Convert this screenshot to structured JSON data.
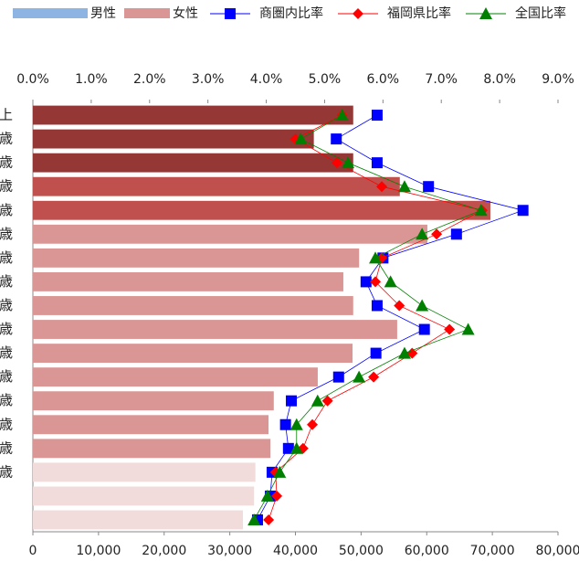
{
  "chart_data": {
    "type": "bar",
    "orientation": "horizontal",
    "legend": [
      {
        "name": "男性",
        "color": "#8db4e2"
      },
      {
        "name": "女性",
        "color": "#da9694"
      }
    ],
    "categories": [
      "上",
      "歳",
      "歳",
      "歳",
      "歳",
      "歳",
      "歳",
      "歳",
      "歳",
      "歳",
      "歳",
      "歳",
      "歳",
      "歳",
      "歳",
      "歳",
      null,
      null
    ],
    "values": [
      48800,
      42800,
      48800,
      55900,
      69700,
      60100,
      49700,
      47300,
      48800,
      55500,
      48700,
      43400,
      36700,
      35900,
      36200,
      33900,
      33700,
      32000
    ],
    "bar_colors": [
      "#953735",
      "#953735",
      "#953735",
      "#c0504d",
      "#c0504d",
      "#da9694",
      "#da9694",
      "#da9694",
      "#da9694",
      "#da9694",
      "#da9694",
      "#da9694",
      "#da9694",
      "#da9694",
      "#da9694",
      "#f2dcdb",
      "#f2dcdb",
      "#f2dcdb"
    ],
    "xlim": [
      0,
      80000
    ],
    "xticks": [
      0,
      {
        "value": 10000,
        "label": "10,000"
      },
      {
        "value": 20000,
        "label": "20,000"
      },
      {
        "value": 30000,
        "label": "30,000"
      },
      {
        "value": 40000,
        "label": "40,000"
      },
      {
        "value": 50000,
        "label": "50,000"
      },
      {
        "value": 60000,
        "label": "60,000"
      },
      {
        "value": 70000,
        "label": "70,000"
      },
      {
        "value": 80000,
        "label": "80,000"
      }
    ],
    "x2lim": [
      0,
      9
    ],
    "x2ticks": [
      {
        "value": 0,
        "label": "0.0%"
      },
      {
        "value": 1,
        "label": "1.0%"
      },
      {
        "value": 2,
        "label": "2.0%"
      },
      {
        "value": 3,
        "label": "3.0%"
      },
      {
        "value": 4,
        "label": "4.0%"
      },
      {
        "value": 5,
        "label": "5.0%"
      },
      {
        "value": 6,
        "label": "6.0%"
      },
      {
        "value": 7,
        "label": "7.0%"
      },
      {
        "value": 8,
        "label": "8.0%"
      },
      {
        "value": 9,
        "label": "9.0%"
      }
    ],
    "series": [
      {
        "name": "商圏内比率",
        "color": "#0000ff",
        "marker": "square",
        "axis": "x2",
        "values": [
          5.9,
          5.2,
          5.9,
          6.78,
          8.4,
          7.26,
          6.0,
          5.71,
          5.9,
          6.71,
          5.88,
          5.24,
          4.43,
          4.33,
          4.38,
          4.1,
          4.07,
          3.85
        ]
      },
      {
        "name": "福岡県比率",
        "color": "#ff0000",
        "marker": "diamond",
        "axis": "x2",
        "values": [
          5.3,
          4.5,
          5.21,
          5.98,
          7.7,
          6.92,
          5.98,
          5.87,
          6.28,
          7.14,
          6.5,
          5.84,
          5.05,
          4.79,
          4.63,
          4.16,
          4.18,
          4.04
        ]
      },
      {
        "name": "全国比率",
        "color": "#008000",
        "marker": "triangle",
        "axis": "x2",
        "values": [
          5.3,
          4.59,
          5.4,
          6.37,
          7.68,
          6.67,
          5.87,
          6.13,
          6.67,
          7.46,
          6.37,
          5.59,
          4.88,
          4.52,
          4.52,
          4.23,
          4.02,
          3.79
        ]
      }
    ]
  }
}
